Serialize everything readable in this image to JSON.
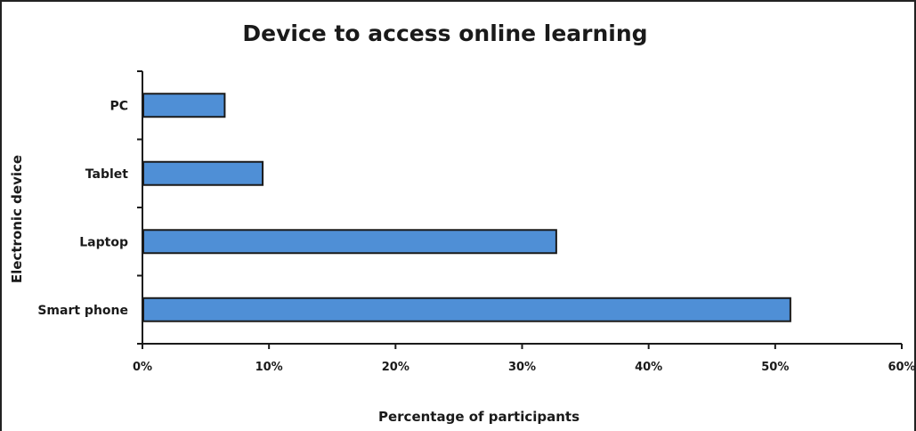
{
  "chart_data": {
    "type": "bar",
    "orientation": "horizontal",
    "title": "Device to access online learning",
    "xlabel": "Percentage of participants",
    "ylabel": "Electronic device",
    "categories": [
      "PC",
      "Tablet",
      "Laptop",
      "Smart phone"
    ],
    "values": [
      6.5,
      9.5,
      32.7,
      51.2
    ],
    "value_unit": "%",
    "xlim": [
      0,
      60
    ],
    "xticks": [
      "0%",
      "10%",
      "20%",
      "30%",
      "40%",
      "50%",
      "60%"
    ],
    "grid": false,
    "legend": "none",
    "bar_color": "#4f8fd6"
  }
}
